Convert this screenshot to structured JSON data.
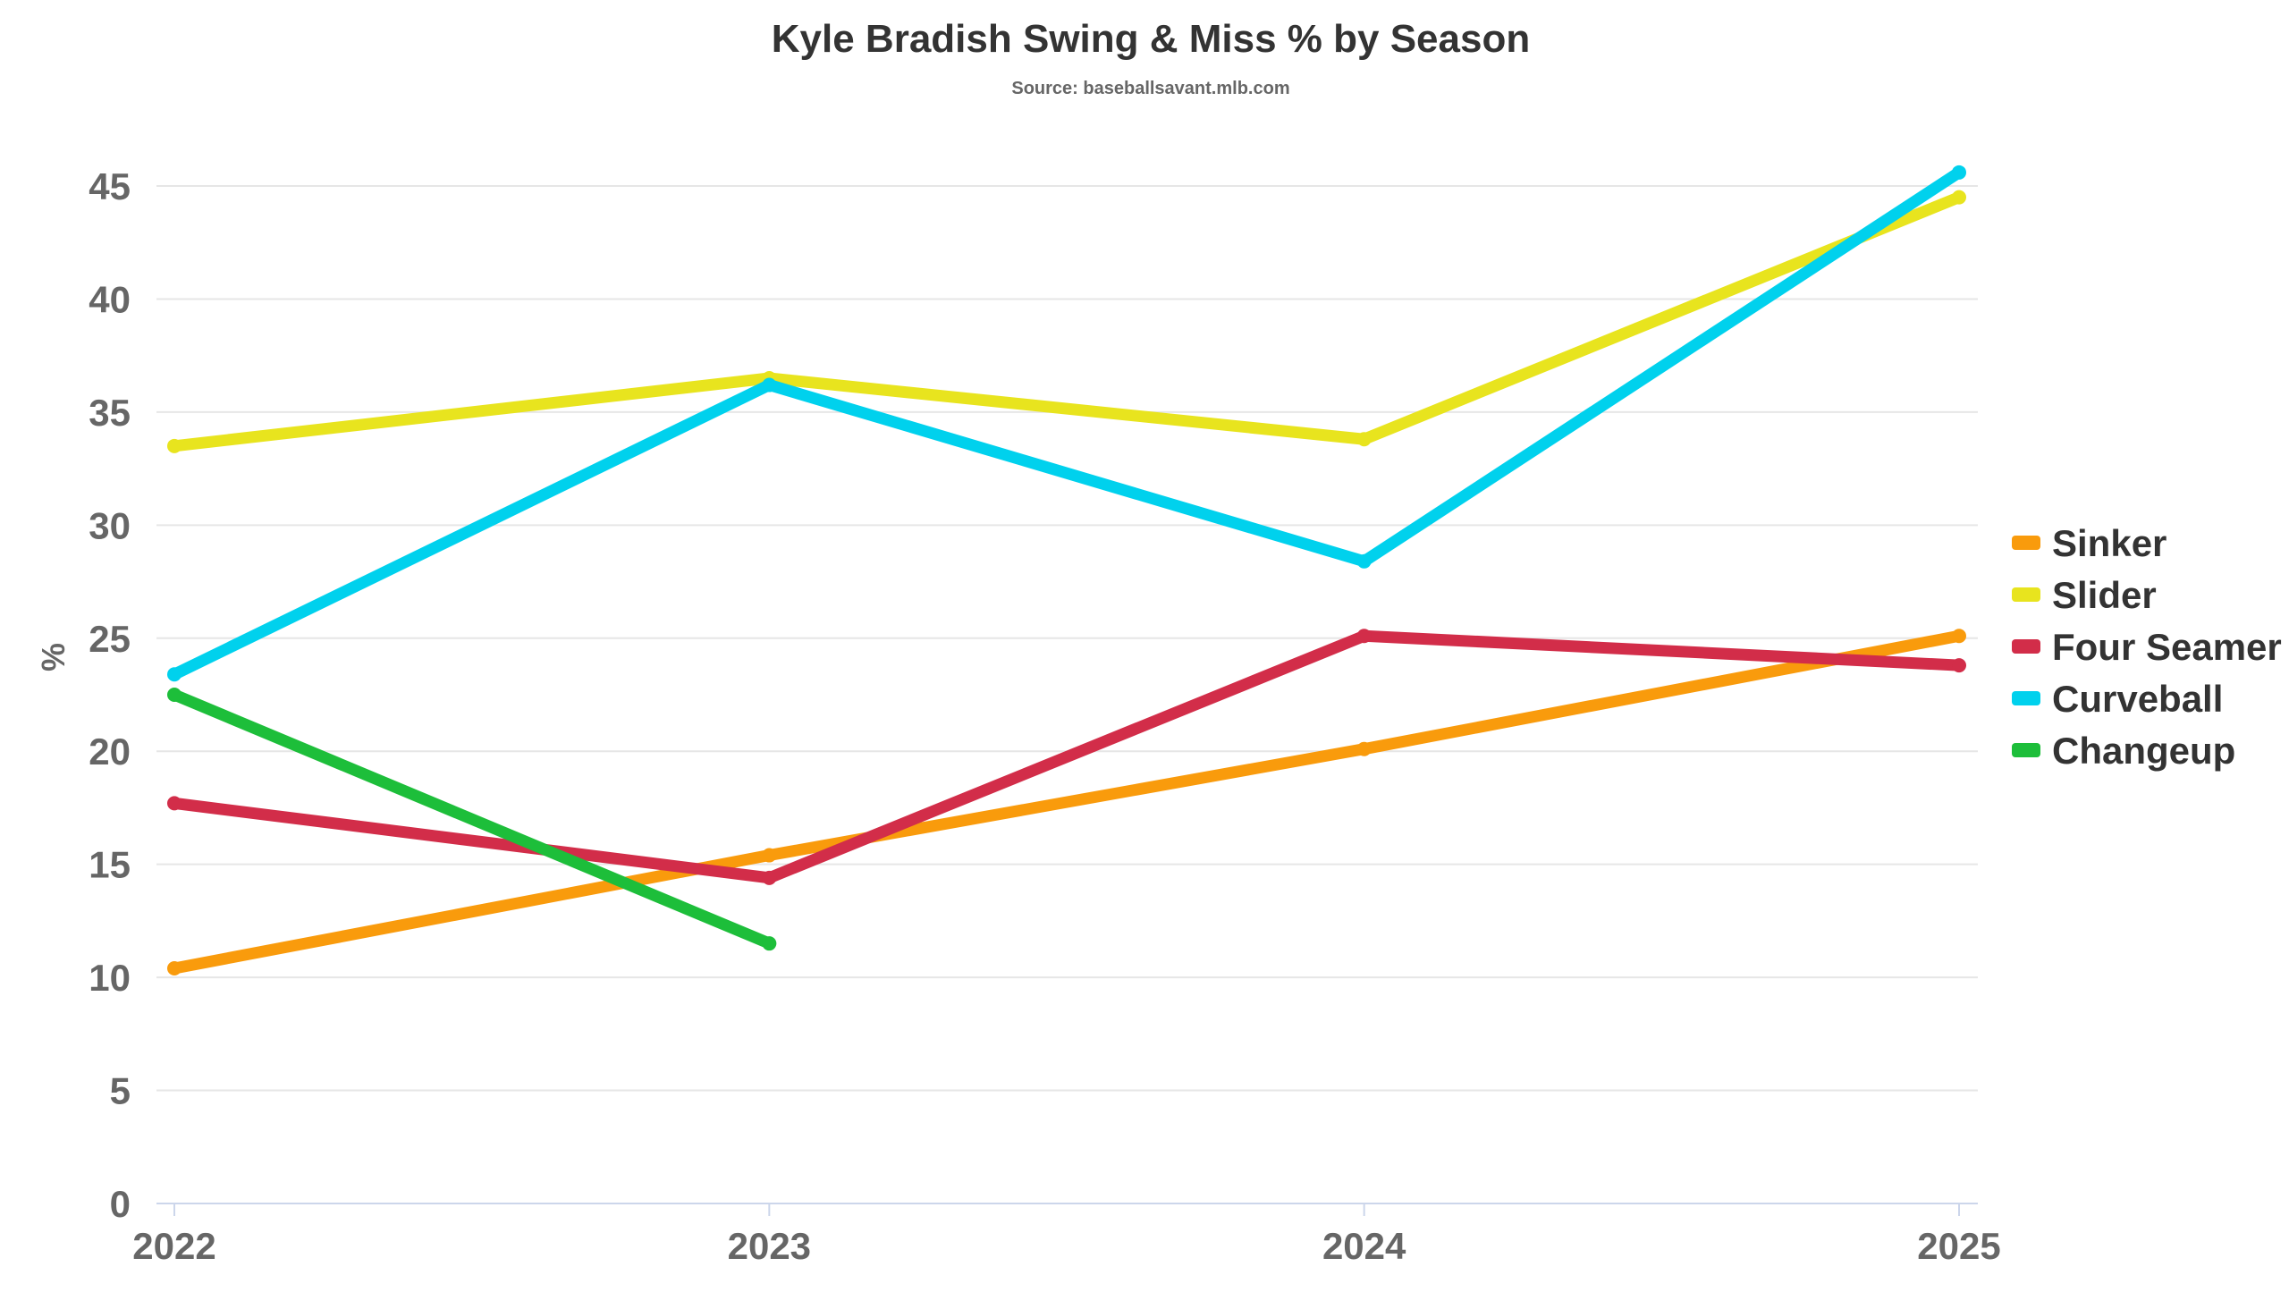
{
  "chart_data": {
    "type": "line",
    "title": "Kyle Bradish Swing & Miss % by Season",
    "subtitle": "Source: baseballsavant.mlb.com",
    "xlabel": "",
    "ylabel": "%",
    "x": [
      "2022",
      "2023",
      "2024",
      "2025"
    ],
    "ylim": [
      0,
      45
    ],
    "yticks": [
      "0",
      "5",
      "10",
      "15",
      "20",
      "25",
      "30",
      "35",
      "40",
      "45"
    ],
    "grid": true,
    "legend_position": "right",
    "series": [
      {
        "name": "Sinker",
        "color": "#F99B0C",
        "values": [
          10.4,
          15.4,
          20.1,
          25.1
        ]
      },
      {
        "name": "Slider",
        "color": "#E8E41E",
        "values": [
          33.5,
          36.5,
          33.8,
          44.5
        ]
      },
      {
        "name": "Four Seamer",
        "color": "#D22D49",
        "values": [
          17.7,
          14.4,
          25.1,
          23.8
        ]
      },
      {
        "name": "Curveball",
        "color": "#00D1ED",
        "values": [
          23.4,
          36.2,
          28.4,
          45.6
        ]
      },
      {
        "name": "Changeup",
        "color": "#1DBE3A",
        "values": [
          22.5,
          11.5,
          null,
          null
        ]
      }
    ]
  }
}
